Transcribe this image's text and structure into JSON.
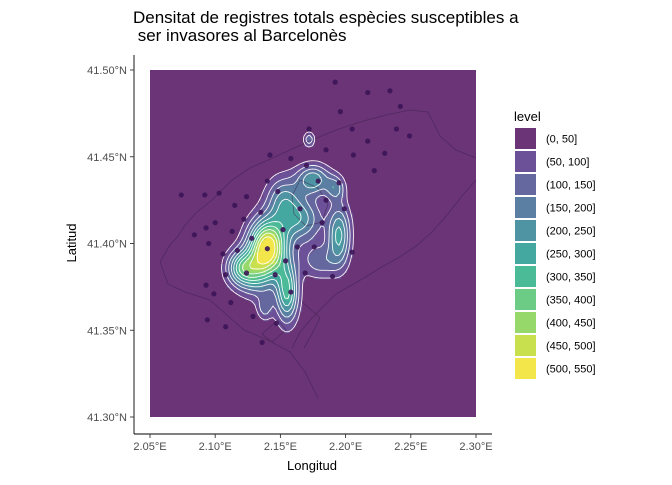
{
  "chart_data": {
    "type": "heatmap",
    "title_lines": [
      "Densitat de registres totals espècies susceptibles a",
      " ser invasores al Barcelonès"
    ],
    "xlabel": "Longitud",
    "ylabel": "Latitud",
    "xlim": [
      2.05,
      2.3
    ],
    "ylim": [
      41.3,
      41.5
    ],
    "x_ticks": [
      {
        "value": 2.05,
        "label": "2.05°E"
      },
      {
        "value": 2.1,
        "label": "2.10°E"
      },
      {
        "value": 2.15,
        "label": "2.15°E"
      },
      {
        "value": 2.2,
        "label": "2.20°E"
      },
      {
        "value": 2.25,
        "label": "2.25°E"
      },
      {
        "value": 2.3,
        "label": "2.30°E"
      }
    ],
    "y_ticks": [
      {
        "value": 41.3,
        "label": "41.30°N"
      },
      {
        "value": 41.35,
        "label": "41.35°N"
      },
      {
        "value": 41.4,
        "label": "41.40°N"
      },
      {
        "value": 41.45,
        "label": "41.45°N"
      },
      {
        "value": 41.5,
        "label": "41.50°N"
      }
    ],
    "legend": {
      "title": "level",
      "position": "right",
      "levels": [
        {
          "label": "(0, 50]",
          "color": "#6a3477"
        },
        {
          "label": "(50, 100]",
          "color": "#6c5198"
        },
        {
          "label": "(100, 150]",
          "color": "#65689f"
        },
        {
          "label": "(150, 200]",
          "color": "#5a7fa2"
        },
        {
          "label": "(200, 250]",
          "color": "#4f94a2"
        },
        {
          "label": "(250, 300]",
          "color": "#45a8a0"
        },
        {
          "label": "(300, 350]",
          "color": "#4bbb97"
        },
        {
          "label": "(350, 400]",
          "color": "#6ccb84"
        },
        {
          "label": "(400, 450]",
          "color": "#97d86b"
        },
        {
          "label": "(450, 500]",
          "color": "#c8e04d"
        },
        {
          "label": "(500, 550]",
          "color": "#f3e64a"
        }
      ]
    },
    "grid": false,
    "density_peaks": [
      {
        "x": 2.14,
        "y": 41.398,
        "level": 550,
        "sx": 0.01,
        "sy": 0.011
      },
      {
        "x": 2.12,
        "y": 41.386,
        "level": 270,
        "sx": 0.008,
        "sy": 0.007
      },
      {
        "x": 2.155,
        "y": 41.372,
        "level": 310,
        "sx": 0.006,
        "sy": 0.012
      },
      {
        "x": 2.175,
        "y": 41.437,
        "level": 240,
        "sx": 0.009,
        "sy": 0.006
      },
      {
        "x": 2.195,
        "y": 41.405,
        "level": 260,
        "sx": 0.006,
        "sy": 0.012
      },
      {
        "x": 2.165,
        "y": 41.414,
        "level": 220,
        "sx": 0.012,
        "sy": 0.009
      },
      {
        "x": 2.152,
        "y": 41.426,
        "level": 180,
        "sx": 0.009,
        "sy": 0.009
      },
      {
        "x": 2.132,
        "y": 41.382,
        "level": 170,
        "sx": 0.01,
        "sy": 0.009
      },
      {
        "x": 2.172,
        "y": 41.46,
        "level": 140,
        "sx": 0.003,
        "sy": 0.003
      },
      {
        "x": 2.18,
        "y": 41.39,
        "level": 130,
        "sx": 0.01,
        "sy": 0.007
      },
      {
        "x": 2.192,
        "y": 41.432,
        "level": 150,
        "sx": 0.005,
        "sy": 0.005
      },
      {
        "x": 2.138,
        "y": 41.363,
        "level": 120,
        "sx": 0.004,
        "sy": 0.005
      }
    ],
    "points": [
      {
        "x": 2.192,
        "y": 41.493
      },
      {
        "x": 2.217,
        "y": 41.487
      },
      {
        "x": 2.234,
        "y": 41.488
      },
      {
        "x": 2.242,
        "y": 41.479
      },
      {
        "x": 2.196,
        "y": 41.476
      },
      {
        "x": 2.239,
        "y": 41.466
      },
      {
        "x": 2.249,
        "y": 41.462
      },
      {
        "x": 2.205,
        "y": 41.466
      },
      {
        "x": 2.172,
        "y": 41.466
      },
      {
        "x": 2.185,
        "y": 41.454
      },
      {
        "x": 2.23,
        "y": 41.452
      },
      {
        "x": 2.217,
        "y": 41.459
      },
      {
        "x": 2.206,
        "y": 41.451
      },
      {
        "x": 2.222,
        "y": 41.442
      },
      {
        "x": 2.142,
        "y": 41.451
      },
      {
        "x": 2.158,
        "y": 41.449
      },
      {
        "x": 2.092,
        "y": 41.428
      },
      {
        "x": 2.103,
        "y": 41.429
      },
      {
        "x": 2.074,
        "y": 41.428
      },
      {
        "x": 2.115,
        "y": 41.422
      },
      {
        "x": 2.1,
        "y": 41.412
      },
      {
        "x": 2.093,
        "y": 41.409
      },
      {
        "x": 2.084,
        "y": 41.405
      },
      {
        "x": 2.113,
        "y": 41.407
      },
      {
        "x": 2.122,
        "y": 41.414
      },
      {
        "x": 2.106,
        "y": 41.394
      },
      {
        "x": 2.095,
        "y": 41.4
      },
      {
        "x": 2.108,
        "y": 41.382
      },
      {
        "x": 2.093,
        "y": 41.376
      },
      {
        "x": 2.099,
        "y": 41.371
      },
      {
        "x": 2.112,
        "y": 41.366
      },
      {
        "x": 2.094,
        "y": 41.356
      },
      {
        "x": 2.108,
        "y": 41.352
      },
      {
        "x": 2.129,
        "y": 41.358
      },
      {
        "x": 2.136,
        "y": 41.343
      },
      {
        "x": 2.147,
        "y": 41.354
      },
      {
        "x": 2.124,
        "y": 41.383
      },
      {
        "x": 2.14,
        "y": 41.397
      },
      {
        "x": 2.152,
        "y": 41.408
      },
      {
        "x": 2.165,
        "y": 41.42
      },
      {
        "x": 2.176,
        "y": 41.398
      },
      {
        "x": 2.182,
        "y": 41.412
      },
      {
        "x": 2.199,
        "y": 41.42
      },
      {
        "x": 2.205,
        "y": 41.395
      },
      {
        "x": 2.19,
        "y": 41.381
      },
      {
        "x": 2.169,
        "y": 41.383
      },
      {
        "x": 2.158,
        "y": 41.372
      },
      {
        "x": 2.148,
        "y": 41.43
      },
      {
        "x": 2.135,
        "y": 41.418
      },
      {
        "x": 2.128,
        "y": 41.403
      },
      {
        "x": 2.154,
        "y": 41.39
      },
      {
        "x": 2.179,
        "y": 41.436
      },
      {
        "x": 2.17,
        "y": 41.445
      },
      {
        "x": 2.195,
        "y": 41.435
      },
      {
        "x": 2.124,
        "y": 41.427
      },
      {
        "x": 2.14,
        "y": 41.436
      },
      {
        "x": 2.117,
        "y": 41.396
      },
      {
        "x": 2.146,
        "y": 41.382
      },
      {
        "x": 2.163,
        "y": 41.398
      },
      {
        "x": 2.185,
        "y": 41.425
      }
    ]
  }
}
